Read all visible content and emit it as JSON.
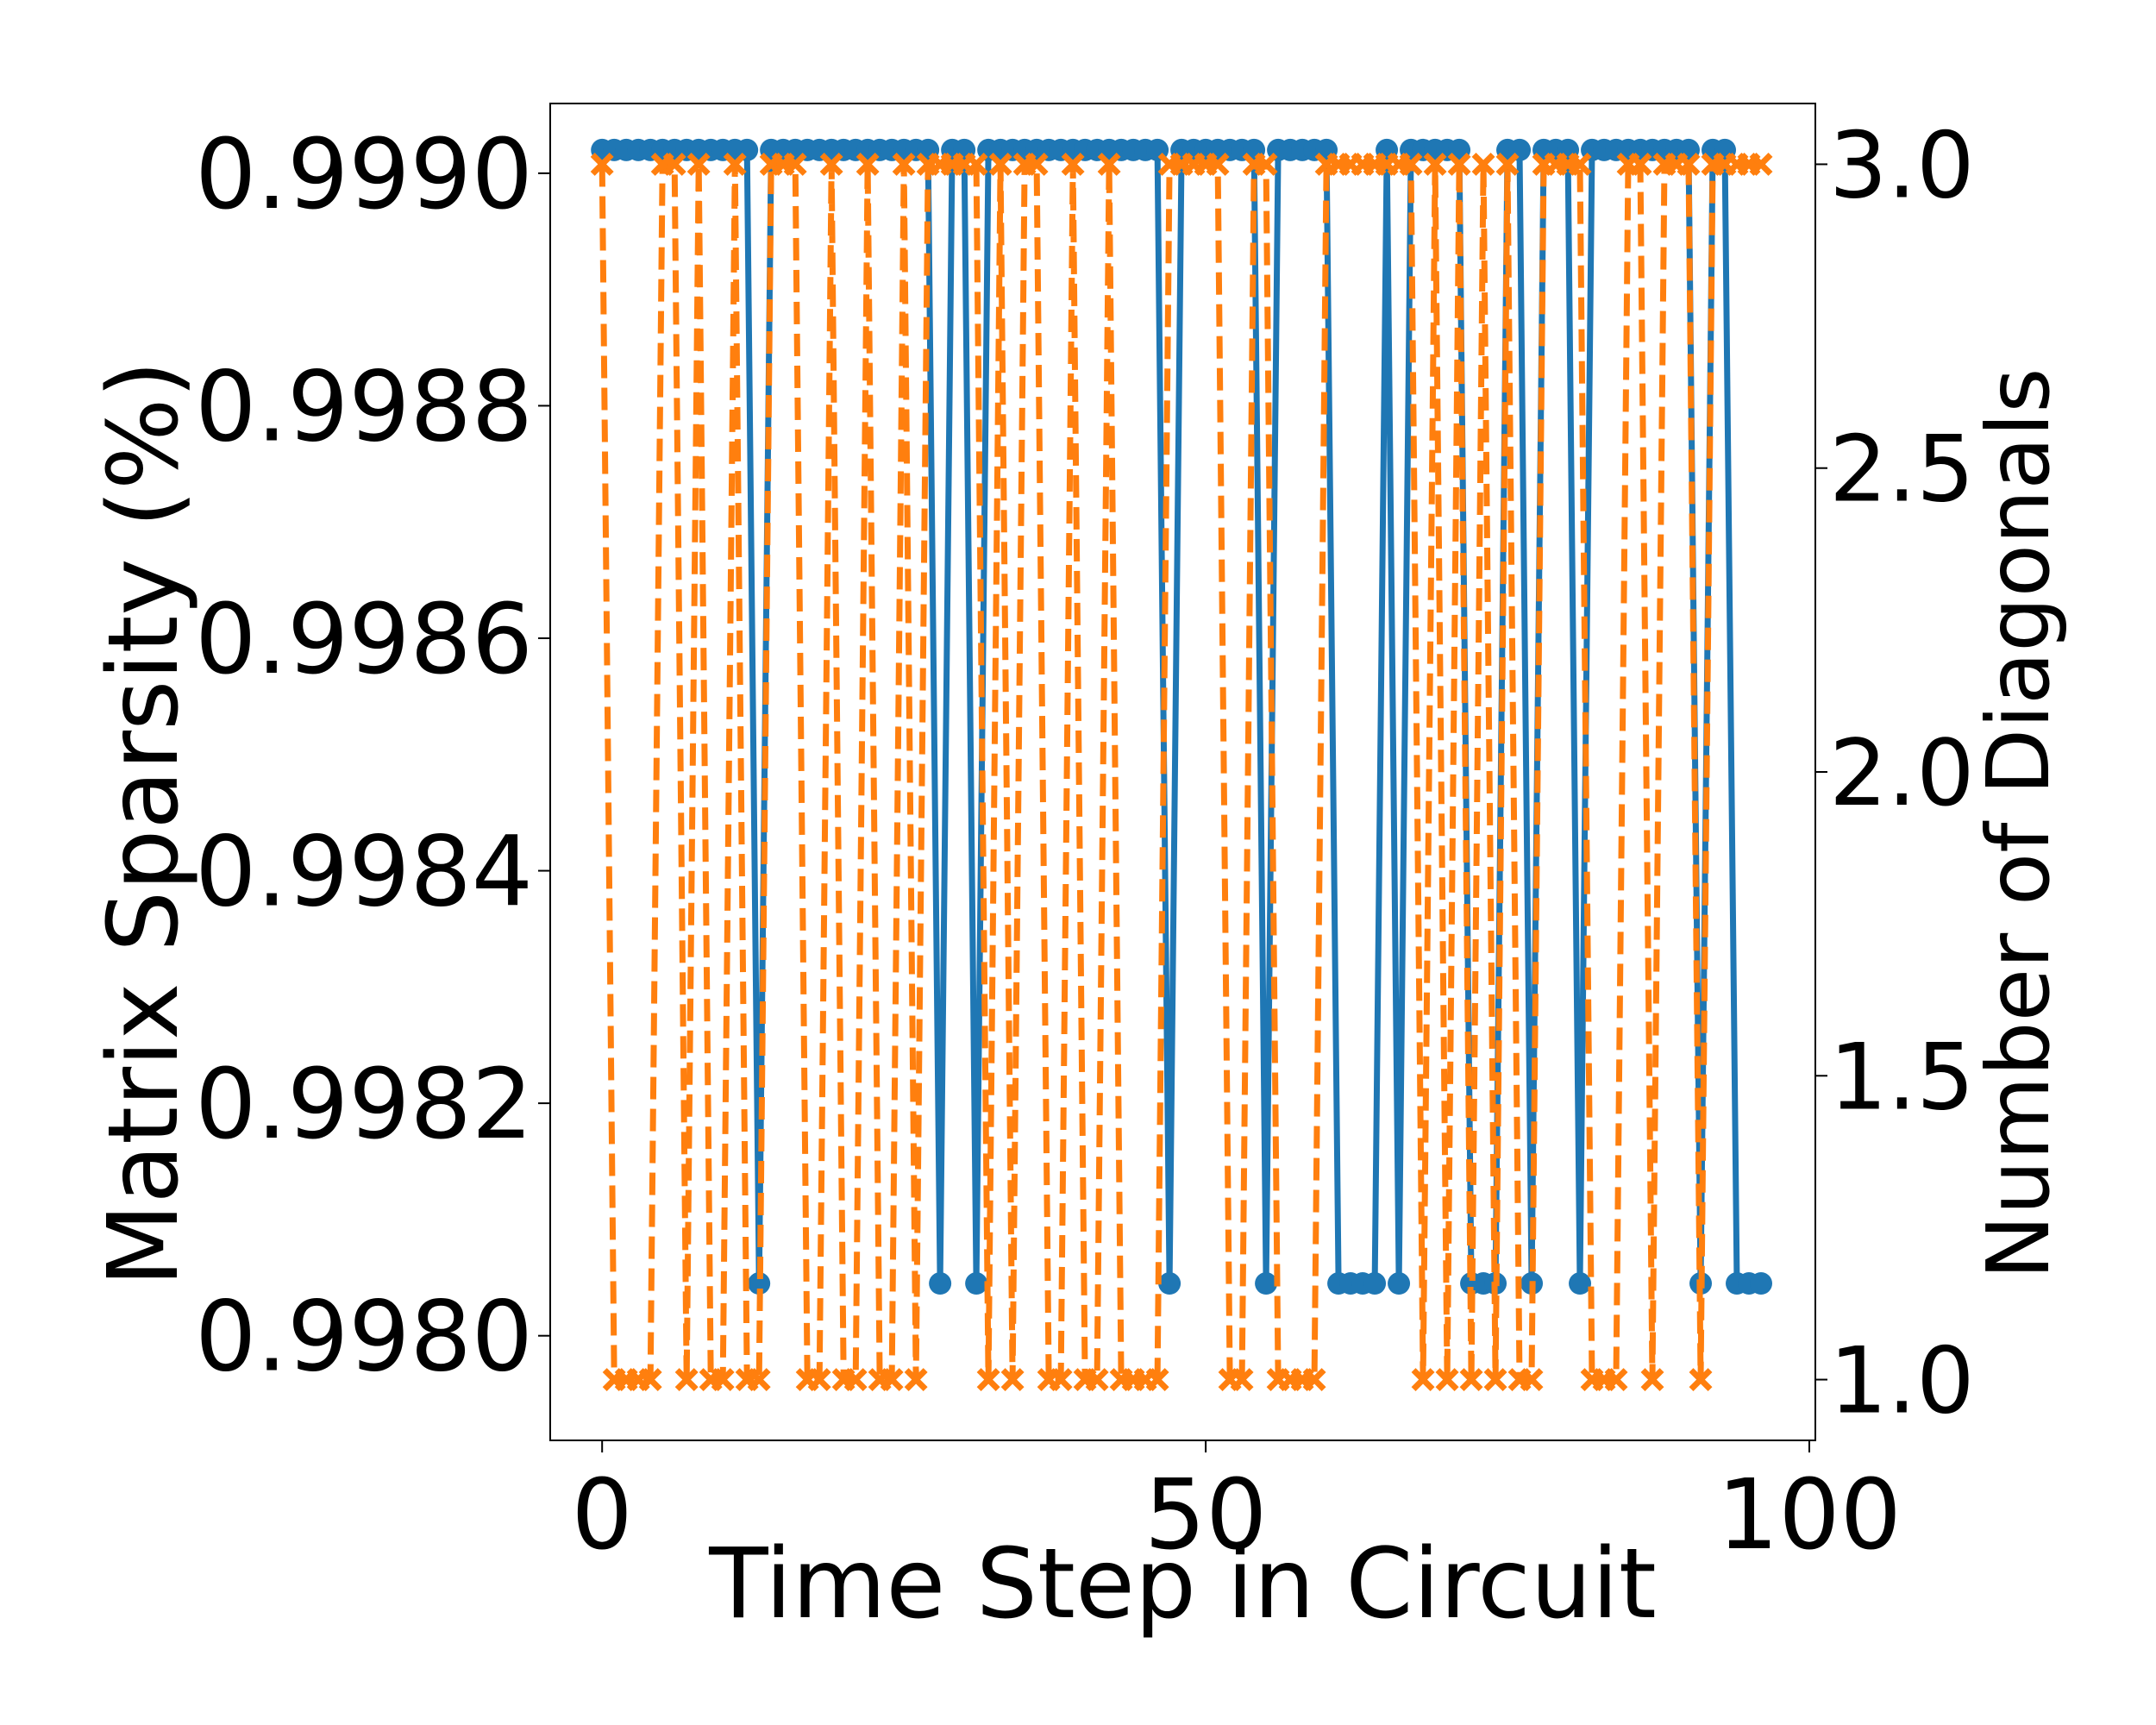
{
  "chart_data": {
    "type": "line",
    "title": "",
    "xlabel": "Time Step in Circuit",
    "ylabel": "Matrix Sparsity (%)",
    "y2label": "Number of Diagonals",
    "xlim": [
      -4.3,
      100.5
    ],
    "ylim": [
      0.99791,
      0.99906
    ],
    "y2lim": [
      0.9,
      3.1
    ],
    "xticks": [
      0,
      50,
      100
    ],
    "xtick_labels": [
      "0",
      "50",
      "100"
    ],
    "yticks": [
      0.998,
      0.9982,
      0.9984,
      0.9986,
      0.9988,
      0.999
    ],
    "ytick_labels": [
      "0.9980",
      "0.9982",
      "0.9984",
      "0.9986",
      "0.9988",
      "0.9990"
    ],
    "y2ticks": [
      1.0,
      1.5,
      2.0,
      2.5,
      3.0
    ],
    "y2tick_labels": [
      "1.0",
      "1.5",
      "2.0",
      "2.5",
      "3.0"
    ],
    "grid": false,
    "series": [
      {
        "axis": "left",
        "color": "#1f77b4",
        "marker": "circle",
        "linestyle": "solid",
        "x": [
          0,
          1,
          2,
          3,
          4,
          5,
          6,
          7,
          8,
          9,
          10,
          11,
          12,
          13,
          14,
          15,
          16,
          17,
          18,
          19,
          20,
          21,
          22,
          23,
          24,
          25,
          26,
          27,
          28,
          29,
          30,
          31,
          32,
          33,
          34,
          35,
          36,
          37,
          38,
          39,
          40,
          41,
          42,
          43,
          44,
          45,
          46,
          47,
          48,
          49,
          50,
          51,
          52,
          53,
          54,
          55,
          56,
          57,
          58,
          59,
          60,
          61,
          62,
          63,
          64,
          65,
          66,
          67,
          68,
          69,
          70,
          71,
          72,
          73,
          74,
          75,
          76,
          77,
          78,
          79,
          80,
          81,
          82,
          83,
          84,
          85,
          86,
          87,
          88,
          89,
          90,
          91,
          92,
          93,
          94,
          95,
          96
        ],
        "values": [
          0.99902,
          0.99902,
          0.99902,
          0.99902,
          0.99902,
          0.99902,
          0.99902,
          0.99902,
          0.99902,
          0.99902,
          0.99902,
          0.99902,
          0.99902,
          0.998045,
          0.99902,
          0.99902,
          0.99902,
          0.99902,
          0.99902,
          0.99902,
          0.99902,
          0.99902,
          0.99902,
          0.99902,
          0.99902,
          0.99902,
          0.99902,
          0.99902,
          0.998045,
          0.99902,
          0.99902,
          0.998045,
          0.99902,
          0.99902,
          0.99902,
          0.99902,
          0.99902,
          0.99902,
          0.99902,
          0.99902,
          0.99902,
          0.99902,
          0.99902,
          0.99902,
          0.99902,
          0.99902,
          0.99902,
          0.998045,
          0.99902,
          0.99902,
          0.99902,
          0.99902,
          0.99902,
          0.99902,
          0.99902,
          0.998045,
          0.99902,
          0.99902,
          0.99902,
          0.99902,
          0.99902,
          0.998045,
          0.998045,
          0.998045,
          0.998045,
          0.99902,
          0.998045,
          0.99902,
          0.99902,
          0.99902,
          0.99902,
          0.99902,
          0.998045,
          0.998045,
          0.998045,
          0.99902,
          0.99902,
          0.998045,
          0.99902,
          0.99902,
          0.99902,
          0.998045,
          0.99902,
          0.99902,
          0.99902,
          0.99902,
          0.99902,
          0.99902,
          0.99902,
          0.99902,
          0.99902,
          0.998045,
          0.99902,
          0.99902,
          0.998045,
          0.998045,
          0.998045
        ]
      },
      {
        "axis": "right",
        "color": "#ff7f0e",
        "marker": "x",
        "linestyle": "dashed",
        "x": [
          0,
          1,
          2,
          3,
          4,
          5,
          6,
          7,
          8,
          9,
          10,
          11,
          12,
          13,
          14,
          15,
          16,
          17,
          18,
          19,
          20,
          21,
          22,
          23,
          24,
          25,
          26,
          27,
          28,
          29,
          30,
          31,
          32,
          33,
          34,
          35,
          36,
          37,
          38,
          39,
          40,
          41,
          42,
          43,
          44,
          45,
          46,
          47,
          48,
          49,
          50,
          51,
          52,
          53,
          54,
          55,
          56,
          57,
          58,
          59,
          60,
          61,
          62,
          63,
          64,
          65,
          66,
          67,
          68,
          69,
          70,
          71,
          72,
          73,
          74,
          75,
          76,
          77,
          78,
          79,
          80,
          81,
          82,
          83,
          84,
          85,
          86,
          87,
          88,
          89,
          90,
          91,
          92,
          93,
          94,
          95,
          96
        ],
        "values": [
          3,
          1,
          1,
          1,
          1,
          3,
          3,
          1,
          3,
          1,
          1,
          3,
          1,
          1,
          3,
          3,
          3,
          1,
          1,
          3,
          1,
          1,
          3,
          1,
          1,
          3,
          1,
          3,
          3,
          3,
          3,
          3,
          1,
          3,
          1,
          3,
          3,
          1,
          1,
          3,
          1,
          1,
          3,
          1,
          1,
          1,
          1,
          3,
          3,
          3,
          3,
          3,
          1,
          1,
          3,
          3,
          1,
          1,
          1,
          1,
          3,
          3,
          3,
          3,
          3,
          3,
          3,
          3,
          1,
          3,
          1,
          3,
          1,
          3,
          1,
          3,
          1,
          1,
          3,
          3,
          3,
          3,
          1,
          1,
          1,
          3,
          3,
          1,
          3,
          3,
          3,
          1,
          3,
          3,
          3,
          3,
          3
        ]
      }
    ]
  }
}
